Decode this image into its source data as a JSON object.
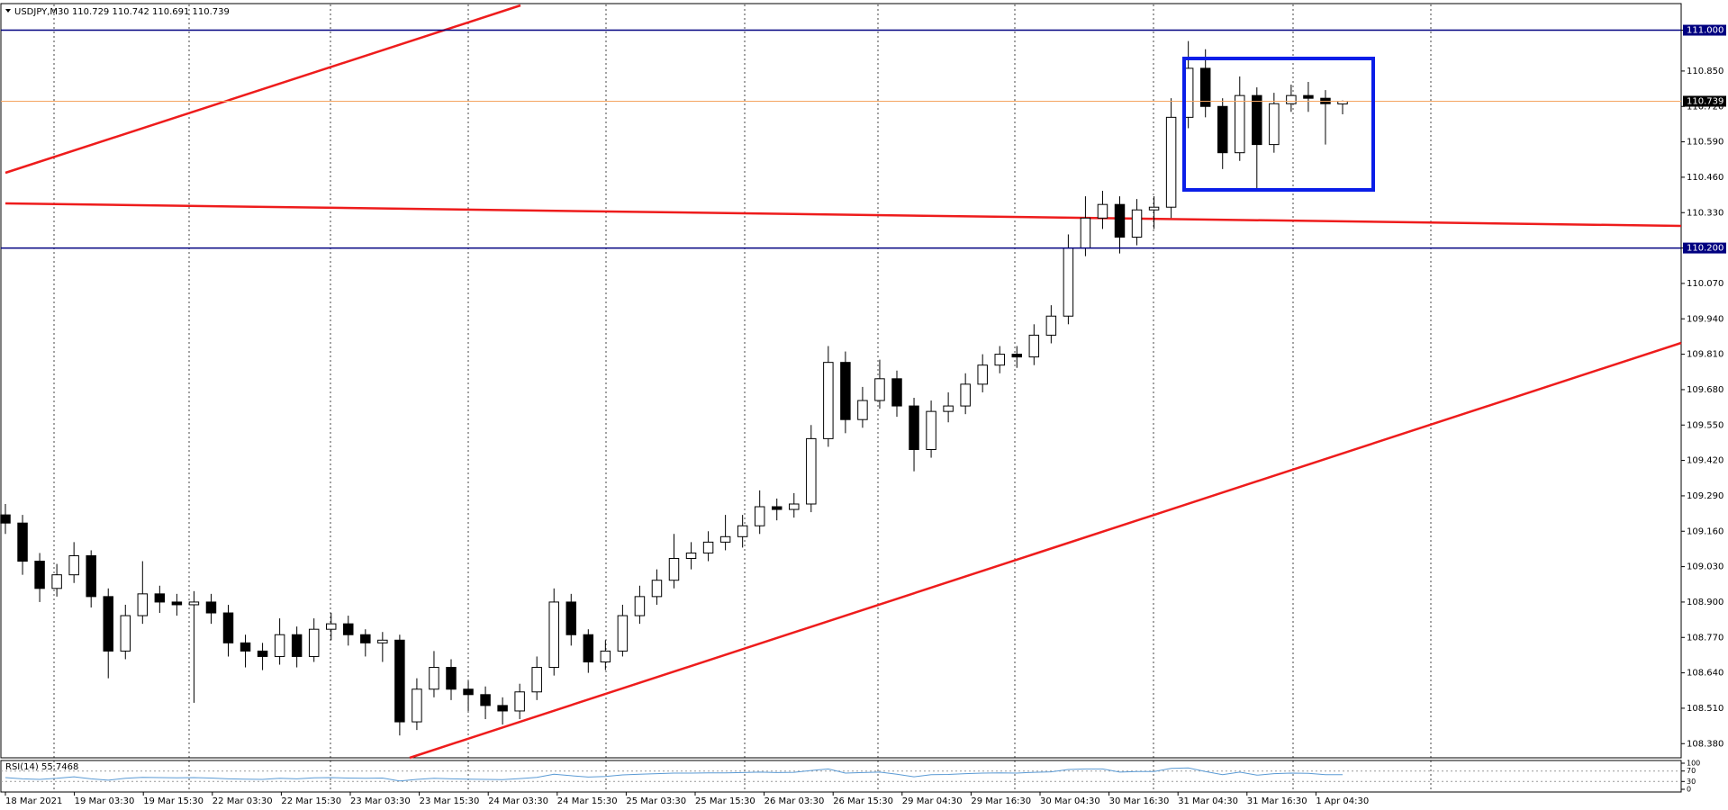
{
  "chart_data": [
    {
      "type": "candlestick",
      "title": "USDJPY,M30  110.729 110.742 110.691 110.739",
      "ylim": [
        108.328,
        111.091
      ],
      "yticks": [
        {
          "value": 108.38,
          "label": "108.380"
        },
        {
          "value": 108.51,
          "label": "108.510"
        },
        {
          "value": 108.64,
          "label": "108.640"
        },
        {
          "value": 108.77,
          "label": "108.770"
        },
        {
          "value": 108.9,
          "label": "108.900"
        },
        {
          "value": 109.03,
          "label": "109.030"
        },
        {
          "value": 109.16,
          "label": "109.160"
        },
        {
          "value": 109.29,
          "label": "109.290"
        },
        {
          "value": 109.42,
          "label": "109.420"
        },
        {
          "value": 109.55,
          "label": "109.550"
        },
        {
          "value": 109.68,
          "label": "109.680"
        },
        {
          "value": 109.81,
          "label": "109.810"
        },
        {
          "value": 109.94,
          "label": "109.940"
        },
        {
          "value": 110.07,
          "label": "110.070"
        },
        {
          "value": 110.2,
          "label": "110.200"
        },
        {
          "value": 110.33,
          "label": "110.330"
        },
        {
          "value": 110.46,
          "label": "110.460"
        },
        {
          "value": 110.59,
          "label": "110.590"
        },
        {
          "value": 110.72,
          "label": "110.720"
        },
        {
          "value": 110.85,
          "label": "110.850"
        },
        {
          "value": 111,
          "label": "111.000"
        }
      ],
      "x_labels": [
        "18 Mar 2021",
        "19 Mar 03:30",
        "19 Mar 15:30",
        "22 Mar 03:30",
        "22 Mar 15:30",
        "23 Mar 03:30",
        "23 Mar 15:30",
        "24 Mar 03:30",
        "24 Mar 15:30",
        "25 Mar 03:30",
        "25 Mar 15:30",
        "26 Mar 03:30",
        "26 Mar 15:30",
        "29 Mar 04:30",
        "29 Mar 16:30",
        "30 Mar 04:30",
        "30 Mar 16:30",
        "31 Mar 04:30",
        "31 Mar 16:30",
        "1 Apr 04:30"
      ],
      "hlines": [
        {
          "value": 111,
          "label": "111.000",
          "color": "#000080"
        },
        {
          "value": 110.2,
          "label": "110.200",
          "color": "#000080"
        }
      ],
      "last_price": {
        "value": 110.739,
        "label": "110.739",
        "color": "#f4a460"
      },
      "open": [
        109.22,
        109.19,
        109.05,
        108.95,
        109.0,
        109.07,
        108.92,
        108.72,
        108.85,
        108.93,
        108.9,
        108.89,
        108.9,
        108.86,
        108.75,
        108.72,
        108.7,
        108.78,
        108.7,
        108.8,
        108.82,
        108.78,
        108.75,
        108.76,
        108.46,
        108.58,
        108.66,
        108.58,
        108.56,
        108.52,
        108.5,
        108.57,
        108.66,
        108.9,
        108.78,
        108.68,
        108.72,
        108.85,
        108.92,
        108.98,
        109.06,
        109.08,
        109.12,
        109.14,
        109.18,
        109.25,
        109.24,
        109.26,
        109.5,
        109.78,
        109.57,
        109.64,
        109.72,
        109.62,
        109.46,
        109.6,
        109.62,
        109.7,
        109.77,
        109.81,
        109.8,
        109.88,
        109.95,
        110.2,
        110.31,
        110.36,
        110.24,
        110.34,
        110.35,
        110.68,
        110.86,
        110.72,
        110.55,
        110.76,
        110.58,
        110.73,
        110.76,
        110.75,
        110.729
      ],
      "high": [
        109.26,
        109.22,
        109.08,
        109.04,
        109.12,
        109.09,
        108.95,
        108.89,
        109.05,
        108.96,
        108.93,
        108.94,
        108.93,
        108.89,
        108.78,
        108.75,
        108.84,
        108.81,
        108.84,
        108.86,
        108.85,
        108.8,
        108.79,
        108.78,
        108.62,
        108.72,
        108.69,
        108.61,
        108.59,
        108.55,
        108.6,
        108.7,
        108.95,
        108.93,
        108.8,
        108.76,
        108.89,
        108.96,
        109.02,
        109.15,
        109.12,
        109.16,
        109.22,
        109.22,
        109.31,
        109.28,
        109.3,
        109.55,
        109.84,
        109.82,
        109.69,
        109.79,
        109.75,
        109.65,
        109.64,
        109.67,
        109.74,
        109.81,
        109.84,
        109.84,
        109.92,
        109.99,
        110.25,
        110.39,
        110.41,
        110.39,
        110.38,
        110.39,
        110.75,
        110.96,
        110.93,
        110.75,
        110.83,
        110.79,
        110.77,
        110.8,
        110.81,
        110.78,
        110.742
      ],
      "low": [
        109.15,
        109.0,
        108.9,
        108.92,
        108.97,
        108.88,
        108.62,
        108.69,
        108.82,
        108.86,
        108.85,
        108.53,
        108.82,
        108.7,
        108.66,
        108.65,
        108.67,
        108.66,
        108.68,
        108.76,
        108.74,
        108.7,
        108.68,
        108.41,
        108.43,
        108.55,
        108.54,
        108.5,
        108.47,
        108.45,
        108.47,
        108.54,
        108.63,
        108.74,
        108.64,
        108.65,
        108.7,
        108.82,
        108.89,
        108.95,
        109.02,
        109.05,
        109.09,
        109.1,
        109.15,
        109.2,
        109.21,
        109.23,
        109.47,
        109.52,
        109.54,
        109.61,
        109.58,
        109.38,
        109.43,
        109.56,
        109.59,
        109.67,
        109.74,
        109.76,
        109.77,
        109.85,
        109.92,
        110.17,
        110.27,
        110.18,
        110.21,
        110.27,
        110.31,
        110.64,
        110.68,
        110.49,
        110.52,
        110.42,
        110.55,
        110.7,
        110.7,
        110.58,
        110.691
      ],
      "close": [
        109.19,
        109.05,
        108.95,
        109.0,
        109.07,
        108.92,
        108.72,
        108.85,
        108.93,
        108.9,
        108.89,
        108.9,
        108.86,
        108.75,
        108.72,
        108.7,
        108.78,
        108.7,
        108.8,
        108.82,
        108.78,
        108.75,
        108.76,
        108.46,
        108.58,
        108.66,
        108.58,
        108.56,
        108.52,
        108.5,
        108.57,
        108.66,
        108.9,
        108.78,
        108.68,
        108.72,
        108.85,
        108.92,
        108.98,
        109.06,
        109.08,
        109.12,
        109.14,
        109.18,
        109.25,
        109.24,
        109.26,
        109.5,
        109.78,
        109.57,
        109.64,
        109.72,
        109.62,
        109.46,
        109.6,
        109.62,
        109.7,
        109.77,
        109.81,
        109.8,
        109.88,
        109.95,
        110.2,
        110.31,
        110.36,
        110.24,
        110.34,
        110.35,
        110.68,
        110.86,
        110.72,
        110.55,
        110.76,
        110.58,
        110.73,
        110.76,
        110.75,
        110.73,
        110.739
      ]
    },
    {
      "type": "line",
      "title": "RSI(14) 55.7468",
      "color": "#5b9bd5",
      "ylim": [
        0,
        100
      ],
      "yticks": [
        100,
        70,
        30,
        0
      ],
      "values": [
        45,
        40,
        38,
        42,
        48,
        40,
        35,
        42,
        46,
        45,
        44,
        45,
        43,
        40,
        39,
        38,
        42,
        40,
        44,
        45,
        43,
        42,
        43,
        32,
        38,
        42,
        40,
        39,
        38,
        37,
        41,
        46,
        58,
        52,
        47,
        49,
        55,
        58,
        60,
        62,
        62,
        63,
        63,
        64,
        66,
        64,
        65,
        72,
        78,
        62,
        64,
        66,
        58,
        48,
        56,
        57,
        60,
        62,
        63,
        62,
        65,
        67,
        76,
        78,
        78,
        66,
        68,
        68,
        80,
        82,
        68,
        56,
        66,
        54,
        60,
        62,
        61,
        56,
        55.7468
      ]
    }
  ]
}
